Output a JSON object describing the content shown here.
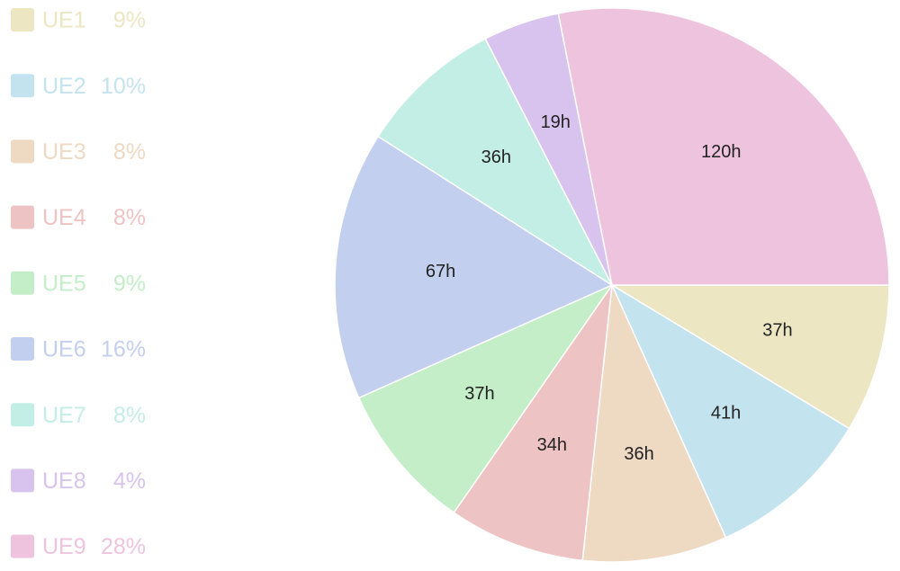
{
  "chart_data": {
    "type": "pie",
    "categories": [
      "UE1",
      "UE2",
      "UE3",
      "UE4",
      "UE5",
      "UE6",
      "UE7",
      "UE8",
      "UE9"
    ],
    "values": [
      37,
      41,
      36,
      34,
      37,
      67,
      36,
      19,
      120
    ],
    "value_labels": [
      "37h",
      "41h",
      "36h",
      "34h",
      "37h",
      "67h",
      "36h",
      "19h",
      "120h"
    ],
    "legend_labels": [
      "9%",
      "10%",
      "8%",
      "8%",
      "9%",
      "16%",
      "8%",
      "4%",
      "28%"
    ],
    "colors": [
      "#ede6c3",
      "#c3e3ee",
      "#eed9c3",
      "#eec3c3",
      "#c3eec8",
      "#c3cfee",
      "#c3eee6",
      "#d8c3ee",
      "#eec3de"
    ],
    "legend": "left"
  }
}
